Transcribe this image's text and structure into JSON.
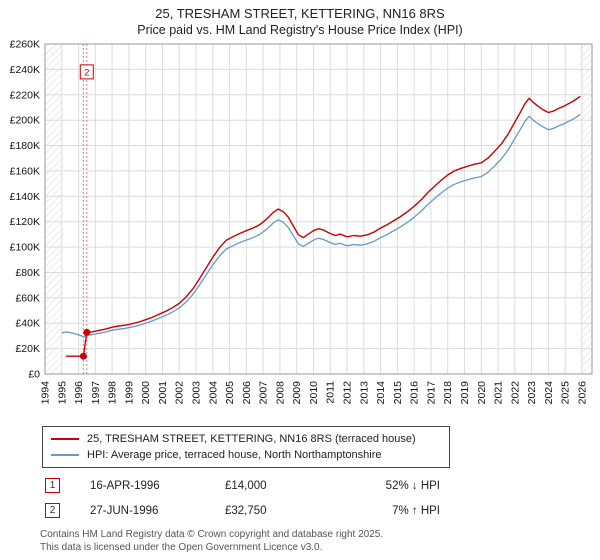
{
  "title": "25, TRESHAM STREET, KETTERING, NN16 8RS",
  "subtitle": "Price paid vs. HM Land Registry's House Price Index (HPI)",
  "legend": [
    {
      "label": "25, TRESHAM STREET, KETTERING, NN16 8RS (terraced house)",
      "color": "#cc0000"
    },
    {
      "label": "HPI: Average price, terraced house, North Northamptonshire",
      "color": "#6699cc"
    }
  ],
  "transactions": [
    {
      "num": "1",
      "date": "16-APR-1996",
      "price": "£14,000",
      "delta": "52% ↓ HPI"
    },
    {
      "num": "2",
      "date": "27-JUN-1996",
      "price": "£32,750",
      "delta": "7% ↑ HPI"
    }
  ],
  "footer": {
    "line1": "Contains HM Land Registry data © Crown copyright and database right 2025.",
    "line2": "This data is licensed under the Open Government Licence v3.0."
  },
  "chart_data": {
    "type": "line",
    "title": "25, TRESHAM STREET, KETTERING, NN16 8RS — Price paid vs. HPI",
    "x_domain": [
      1994,
      2026.6
    ],
    "y_domain": [
      0,
      260000
    ],
    "y_step": 20000,
    "data_start": 1995.0,
    "data_end": 2025.9,
    "grid": true,
    "y_tick_labels": [
      "£0",
      "£20K",
      "£40K",
      "£60K",
      "£80K",
      "£100K",
      "£120K",
      "£140K",
      "£160K",
      "£180K",
      "£200K",
      "£220K",
      "£240K",
      "£260K"
    ],
    "x_ticks": [
      1994,
      1995,
      1996,
      1997,
      1998,
      1999,
      2000,
      2001,
      2002,
      2003,
      2004,
      2005,
      2006,
      2007,
      2008,
      2009,
      2010,
      2011,
      2012,
      2013,
      2014,
      2015,
      2016,
      2017,
      2018,
      2019,
      2020,
      2021,
      2022,
      2023,
      2024,
      2025,
      2026
    ],
    "markers": [
      {
        "label": "1",
        "x": 1996.29,
        "y": 14000
      },
      {
        "label": "2",
        "x": 1996.49,
        "y": 32750
      }
    ],
    "annotation": {
      "label": "2",
      "x": 1996.49,
      "y": 238000
    },
    "series": [
      {
        "name": "25, TRESHAM STREET, KETTERING, NN16 8RS (terraced house)",
        "color": "#cc0000",
        "width": 1.4,
        "points": [
          [
            1995.25,
            14000
          ],
          [
            1996.29,
            14000
          ],
          [
            1996.49,
            32750
          ],
          [
            1996.8,
            33200
          ],
          [
            1997.1,
            34000
          ],
          [
            1997.4,
            34800
          ],
          [
            1997.7,
            35700
          ],
          [
            1998.0,
            36900
          ],
          [
            1998.4,
            37800
          ],
          [
            1998.8,
            38500
          ],
          [
            1999.2,
            39600
          ],
          [
            1999.6,
            41000
          ],
          [
            2000.0,
            42800
          ],
          [
            2000.4,
            44700
          ],
          [
            2000.8,
            47100
          ],
          [
            2001.2,
            49400
          ],
          [
            2001.6,
            52200
          ],
          [
            2002.0,
            55600
          ],
          [
            2002.4,
            60500
          ],
          [
            2002.8,
            66900
          ],
          [
            2003.2,
            74900
          ],
          [
            2003.6,
            83500
          ],
          [
            2004.0,
            92000
          ],
          [
            2004.4,
            99500
          ],
          [
            2004.8,
            105400
          ],
          [
            2005.2,
            108100
          ],
          [
            2005.6,
            110700
          ],
          [
            2006.0,
            112900
          ],
          [
            2006.4,
            115000
          ],
          [
            2006.8,
            117700
          ],
          [
            2007.2,
            122000
          ],
          [
            2007.6,
            127300
          ],
          [
            2007.9,
            130000
          ],
          [
            2008.2,
            127900
          ],
          [
            2008.5,
            123600
          ],
          [
            2008.8,
            116600
          ],
          [
            2009.1,
            109700
          ],
          [
            2009.4,
            107500
          ],
          [
            2009.7,
            110200
          ],
          [
            2010.0,
            112900
          ],
          [
            2010.3,
            114500
          ],
          [
            2010.6,
            113400
          ],
          [
            2011.0,
            110700
          ],
          [
            2011.3,
            109100
          ],
          [
            2011.6,
            110200
          ],
          [
            2012.0,
            108100
          ],
          [
            2012.4,
            109100
          ],
          [
            2012.8,
            108600
          ],
          [
            2013.2,
            109700
          ],
          [
            2013.6,
            111800
          ],
          [
            2014.0,
            115000
          ],
          [
            2014.4,
            117700
          ],
          [
            2014.8,
            120900
          ],
          [
            2015.2,
            124100
          ],
          [
            2015.6,
            127900
          ],
          [
            2016.0,
            132100
          ],
          [
            2016.4,
            137000
          ],
          [
            2016.8,
            142800
          ],
          [
            2017.2,
            147700
          ],
          [
            2017.6,
            152500
          ],
          [
            2018.0,
            156800
          ],
          [
            2018.4,
            160000
          ],
          [
            2018.8,
            162100
          ],
          [
            2019.2,
            163700
          ],
          [
            2019.6,
            165300
          ],
          [
            2020.0,
            166400
          ],
          [
            2020.4,
            170100
          ],
          [
            2020.8,
            175500
          ],
          [
            2021.2,
            181400
          ],
          [
            2021.6,
            188900
          ],
          [
            2022.0,
            198500
          ],
          [
            2022.3,
            205400
          ],
          [
            2022.6,
            212900
          ],
          [
            2022.85,
            217200
          ],
          [
            2023.1,
            214000
          ],
          [
            2023.4,
            210800
          ],
          [
            2023.7,
            208100
          ],
          [
            2024.0,
            206000
          ],
          [
            2024.3,
            207100
          ],
          [
            2024.6,
            209200
          ],
          [
            2024.9,
            210800
          ],
          [
            2025.2,
            212900
          ],
          [
            2025.5,
            215100
          ],
          [
            2025.9,
            218800
          ]
        ]
      },
      {
        "name": "HPI: Average price, terraced house, North Northamptonshire",
        "color": "#6699cc",
        "width": 1.3,
        "points": [
          [
            1995.0,
            32500
          ],
          [
            1995.3,
            33200
          ],
          [
            1995.6,
            32300
          ],
          [
            1995.9,
            31300
          ],
          [
            1996.29,
            29500
          ],
          [
            1996.49,
            30600
          ],
          [
            1996.8,
            31000
          ],
          [
            1997.1,
            31800
          ],
          [
            1997.4,
            32500
          ],
          [
            1997.7,
            33400
          ],
          [
            1998.0,
            34500
          ],
          [
            1998.4,
            35300
          ],
          [
            1998.8,
            36000
          ],
          [
            1999.2,
            37000
          ],
          [
            1999.6,
            38300
          ],
          [
            2000.0,
            40000
          ],
          [
            2000.4,
            41800
          ],
          [
            2000.8,
            44000
          ],
          [
            2001.2,
            46200
          ],
          [
            2001.6,
            48800
          ],
          [
            2002.0,
            52000
          ],
          [
            2002.4,
            56500
          ],
          [
            2002.8,
            62500
          ],
          [
            2003.2,
            70000
          ],
          [
            2003.6,
            78000
          ],
          [
            2004.0,
            86000
          ],
          [
            2004.4,
            93000
          ],
          [
            2004.8,
            98500
          ],
          [
            2005.2,
            101000
          ],
          [
            2005.6,
            103500
          ],
          [
            2006.0,
            105500
          ],
          [
            2006.4,
            107500
          ],
          [
            2006.8,
            110000
          ],
          [
            2007.2,
            114000
          ],
          [
            2007.6,
            119000
          ],
          [
            2007.9,
            121500
          ],
          [
            2008.2,
            119500
          ],
          [
            2008.5,
            115500
          ],
          [
            2008.8,
            109000
          ],
          [
            2009.1,
            102500
          ],
          [
            2009.4,
            100500
          ],
          [
            2009.7,
            103000
          ],
          [
            2010.0,
            105500
          ],
          [
            2010.3,
            107000
          ],
          [
            2010.6,
            106000
          ],
          [
            2011.0,
            103500
          ],
          [
            2011.3,
            102000
          ],
          [
            2011.6,
            103000
          ],
          [
            2012.0,
            101000
          ],
          [
            2012.4,
            102000
          ],
          [
            2012.8,
            101500
          ],
          [
            2013.2,
            102500
          ],
          [
            2013.6,
            104500
          ],
          [
            2014.0,
            107500
          ],
          [
            2014.4,
            110000
          ],
          [
            2014.8,
            113000
          ],
          [
            2015.2,
            116000
          ],
          [
            2015.6,
            119500
          ],
          [
            2016.0,
            123500
          ],
          [
            2016.4,
            128000
          ],
          [
            2016.8,
            133500
          ],
          [
            2017.2,
            138000
          ],
          [
            2017.6,
            142500
          ],
          [
            2018.0,
            146500
          ],
          [
            2018.4,
            149500
          ],
          [
            2018.8,
            151500
          ],
          [
            2019.2,
            153000
          ],
          [
            2019.6,
            154500
          ],
          [
            2020.0,
            155500
          ],
          [
            2020.4,
            159000
          ],
          [
            2020.8,
            164000
          ],
          [
            2021.2,
            169500
          ],
          [
            2021.6,
            176500
          ],
          [
            2022.0,
            185500
          ],
          [
            2022.3,
            192000
          ],
          [
            2022.6,
            199000
          ],
          [
            2022.85,
            203000
          ],
          [
            2023.1,
            200000
          ],
          [
            2023.4,
            197000
          ],
          [
            2023.7,
            194500
          ],
          [
            2024.0,
            192500
          ],
          [
            2024.3,
            193500
          ],
          [
            2024.6,
            195500
          ],
          [
            2024.9,
            197000
          ],
          [
            2025.2,
            199000
          ],
          [
            2025.5,
            201000
          ],
          [
            2025.9,
            204500
          ]
        ]
      }
    ]
  }
}
